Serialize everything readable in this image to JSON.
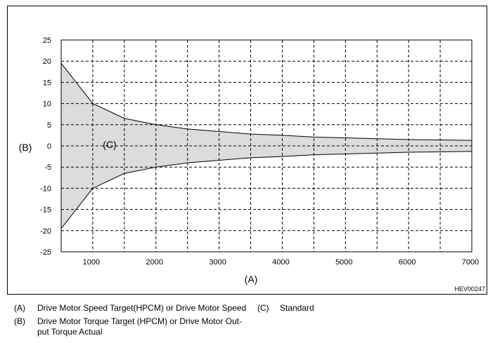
{
  "chart_data": {
    "type": "area",
    "x_axis_label": "(A)",
    "y_axis_label": "(B)",
    "band_label": "(C)",
    "xlim": [
      500,
      7000
    ],
    "ylim": [
      -25,
      25
    ],
    "x_ticks": [
      1000,
      2000,
      3000,
      4000,
      5000,
      6000,
      7000
    ],
    "y_ticks": [
      25,
      20,
      15,
      10,
      5,
      0,
      -5,
      -10,
      -15,
      -20,
      -25
    ],
    "x_grid": [
      1000,
      1500,
      2000,
      2500,
      3000,
      3500,
      4000,
      4500,
      5000,
      5500,
      6000,
      6500
    ],
    "grid": true,
    "series": [
      {
        "x": [
          500,
          1000,
          1500,
          2000,
          2500,
          3000,
          3500,
          4000,
          4500,
          5000,
          5500,
          6000,
          6500,
          7000
        ],
        "upper": [
          19.5,
          10,
          6.5,
          5,
          4,
          3.4,
          2.8,
          2.5,
          2.1,
          1.9,
          1.7,
          1.5,
          1.4,
          1.3
        ],
        "lower": [
          -19.5,
          -10,
          -6.5,
          -5,
          -4,
          -3.4,
          -2.8,
          -2.5,
          -2.1,
          -1.9,
          -1.7,
          -1.5,
          -1.4,
          -1.3
        ]
      }
    ],
    "band_fill": "#dcdcdc",
    "ref_code": "HEV00247"
  },
  "legend": [
    {
      "key": "(A)",
      "text": "Drive Motor Speed Target(HPCM) or Drive Motor Speed"
    },
    {
      "key": "(C)",
      "text": "Standard"
    },
    {
      "key": "(B)",
      "text": "Drive Motor Torque Target (HPCM) or Drive Motor Out-"
    },
    {
      "key": "",
      "text": "put Torque Actual"
    }
  ]
}
